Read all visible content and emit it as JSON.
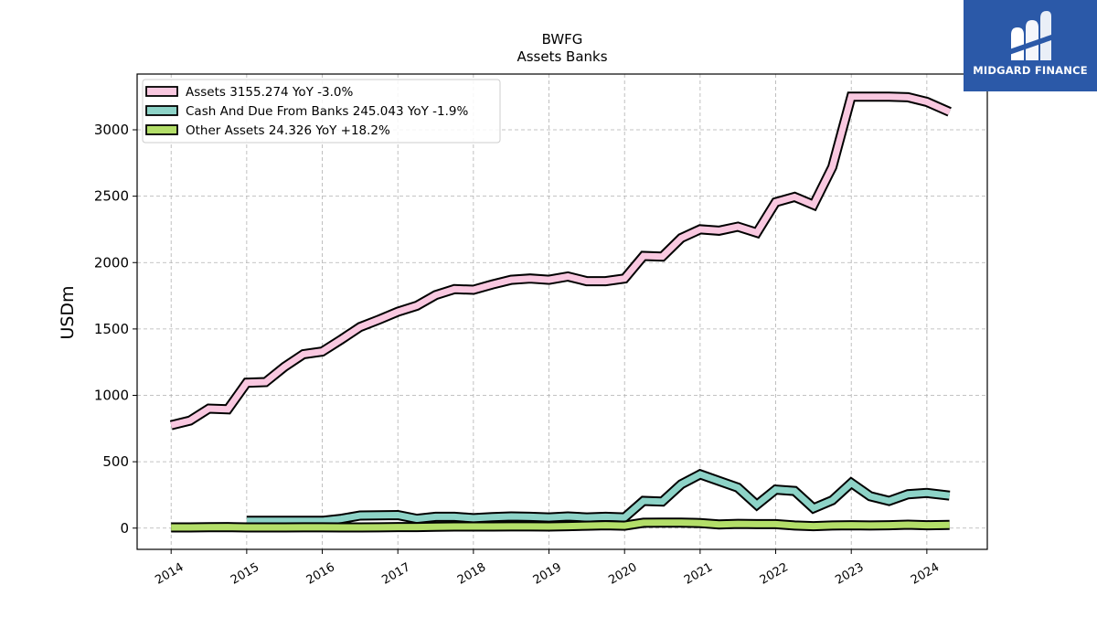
{
  "chart_data": {
    "type": "line",
    "title": "BWFG",
    "subtitle": "Assets Banks",
    "xlabel": "",
    "ylabel": "USDm",
    "xlim": [
      2013.55,
      2024.8
    ],
    "ylim": [
      -160,
      3420
    ],
    "x_ticks": [
      2014,
      2015,
      2016,
      2017,
      2018,
      2019,
      2020,
      2021,
      2022,
      2023,
      2024
    ],
    "x_tick_labels": [
      "2014",
      "2015",
      "2016",
      "2017",
      "2018",
      "2019",
      "2020",
      "2021",
      "2022",
      "2023",
      "2024"
    ],
    "y_ticks": [
      0,
      500,
      1000,
      1500,
      2000,
      2500,
      3000
    ],
    "y_tick_labels": [
      "0",
      "500",
      "1000",
      "1500",
      "2000",
      "2500",
      "3000"
    ],
    "grid": true,
    "legend_position": "top-left",
    "series": [
      {
        "name": "Assets",
        "legend_label": "Assets  3155.274 YoY -3.0%",
        "color": "#f9c8e0",
        "points": [
          [
            2014.0,
            775
          ],
          [
            2014.25,
            810
          ],
          [
            2014.5,
            900
          ],
          [
            2014.75,
            895
          ],
          [
            2015.0,
            1095
          ],
          [
            2015.25,
            1100
          ],
          [
            2015.5,
            1215
          ],
          [
            2015.75,
            1310
          ],
          [
            2016.0,
            1330
          ],
          [
            2016.25,
            1420
          ],
          [
            2016.5,
            1515
          ],
          [
            2016.75,
            1570
          ],
          [
            2017.0,
            1630
          ],
          [
            2017.25,
            1675
          ],
          [
            2017.5,
            1755
          ],
          [
            2017.75,
            1800
          ],
          [
            2018.0,
            1795
          ],
          [
            2018.25,
            1835
          ],
          [
            2018.5,
            1870
          ],
          [
            2018.75,
            1880
          ],
          [
            2019.0,
            1870
          ],
          [
            2019.25,
            1895
          ],
          [
            2019.5,
            1860
          ],
          [
            2019.75,
            1860
          ],
          [
            2020.0,
            1880
          ],
          [
            2020.25,
            2050
          ],
          [
            2020.5,
            2045
          ],
          [
            2020.75,
            2185
          ],
          [
            2021.0,
            2250
          ],
          [
            2021.25,
            2240
          ],
          [
            2021.5,
            2270
          ],
          [
            2021.75,
            2225
          ],
          [
            2022.0,
            2455
          ],
          [
            2022.25,
            2495
          ],
          [
            2022.5,
            2435
          ],
          [
            2022.75,
            2720
          ],
          [
            2023.0,
            3250
          ],
          [
            2023.25,
            3250
          ],
          [
            2023.5,
            3250
          ],
          [
            2023.75,
            3245
          ],
          [
            2024.0,
            3210
          ],
          [
            2024.3,
            3135
          ]
        ]
      },
      {
        "name": "Cash And Due From Banks",
        "legend_label": "Cash And Due From Banks  245.043 YoY -1.9%",
        "color": "#8dd3c7",
        "points": [
          [
            2015.0,
            55
          ],
          [
            2015.25,
            55
          ],
          [
            2015.5,
            55
          ],
          [
            2015.75,
            55
          ],
          [
            2016.0,
            55
          ],
          [
            2016.25,
            70
          ],
          [
            2016.5,
            95
          ],
          [
            2016.75,
            97
          ],
          [
            2017.0,
            98
          ],
          [
            2017.25,
            70
          ],
          [
            2017.5,
            85
          ],
          [
            2017.75,
            85
          ],
          [
            2018.0,
            75
          ],
          [
            2018.25,
            82
          ],
          [
            2018.5,
            88
          ],
          [
            2018.75,
            85
          ],
          [
            2019.0,
            80
          ],
          [
            2019.25,
            88
          ],
          [
            2019.5,
            80
          ],
          [
            2019.75,
            85
          ],
          [
            2020.0,
            80
          ],
          [
            2020.25,
            205
          ],
          [
            2020.5,
            200
          ],
          [
            2020.75,
            330
          ],
          [
            2021.0,
            405
          ],
          [
            2021.25,
            355
          ],
          [
            2021.5,
            305
          ],
          [
            2021.75,
            175
          ],
          [
            2022.0,
            290
          ],
          [
            2022.25,
            280
          ],
          [
            2022.5,
            150
          ],
          [
            2022.75,
            210
          ],
          [
            2023.0,
            340
          ],
          [
            2023.25,
            240
          ],
          [
            2023.5,
            205
          ],
          [
            2023.75,
            255
          ],
          [
            2024.0,
            265
          ],
          [
            2024.3,
            245
          ]
        ]
      },
      {
        "name": "Other Assets",
        "legend_label": "Other Assets  24.326 YoY +18.2%",
        "color": "#b3de69",
        "points": [
          [
            2014.0,
            5
          ],
          [
            2014.25,
            5
          ],
          [
            2014.5,
            7
          ],
          [
            2014.75,
            8
          ],
          [
            2015.0,
            5
          ],
          [
            2015.25,
            5
          ],
          [
            2015.5,
            5
          ],
          [
            2015.75,
            6
          ],
          [
            2016.0,
            6
          ],
          [
            2016.25,
            5
          ],
          [
            2016.5,
            5
          ],
          [
            2016.75,
            6
          ],
          [
            2017.0,
            8
          ],
          [
            2017.25,
            8
          ],
          [
            2017.5,
            10
          ],
          [
            2017.75,
            12
          ],
          [
            2018.0,
            12
          ],
          [
            2018.25,
            12
          ],
          [
            2018.5,
            13
          ],
          [
            2018.75,
            13
          ],
          [
            2019.0,
            12
          ],
          [
            2019.25,
            15
          ],
          [
            2019.5,
            18
          ],
          [
            2019.75,
            22
          ],
          [
            2020.0,
            18
          ],
          [
            2020.25,
            40
          ],
          [
            2020.5,
            42
          ],
          [
            2020.75,
            42
          ],
          [
            2021.0,
            38
          ],
          [
            2021.25,
            28
          ],
          [
            2021.5,
            32
          ],
          [
            2021.75,
            30
          ],
          [
            2022.0,
            30
          ],
          [
            2022.25,
            20
          ],
          [
            2022.5,
            15
          ],
          [
            2022.75,
            20
          ],
          [
            2023.0,
            22
          ],
          [
            2023.25,
            20
          ],
          [
            2023.5,
            22
          ],
          [
            2023.75,
            26
          ],
          [
            2024.0,
            22
          ],
          [
            2024.3,
            24
          ]
        ]
      }
    ]
  },
  "logo": {
    "text": "MIDGARD FINANCE",
    "background": "#2b59a8"
  }
}
